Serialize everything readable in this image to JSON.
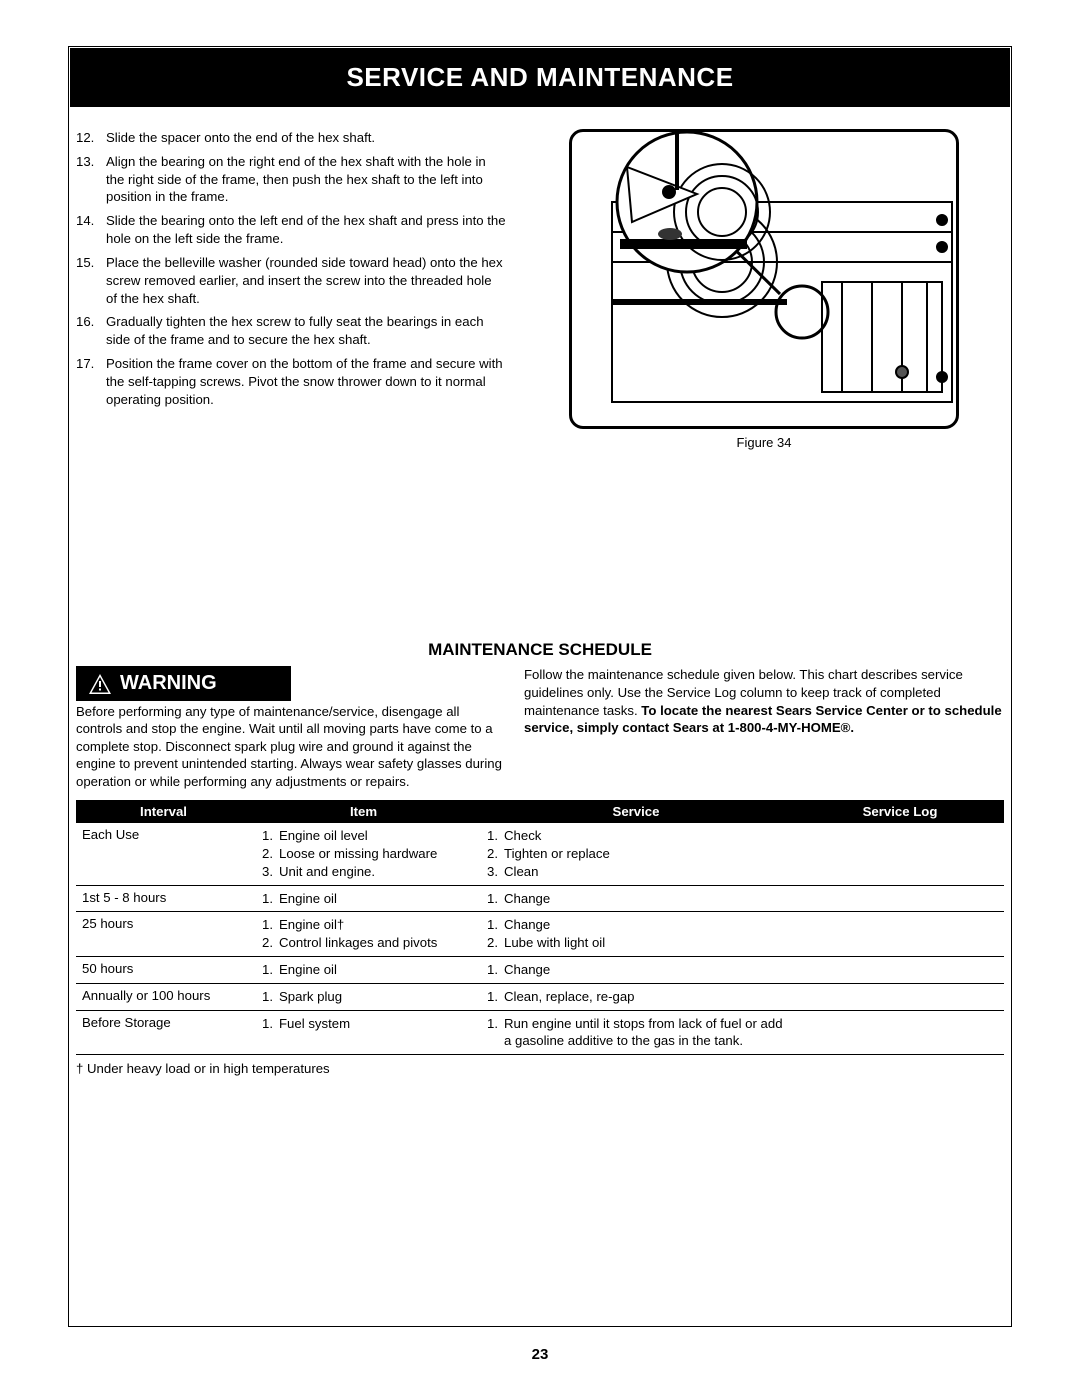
{
  "page": {
    "title": "SERVICE AND MAINTENANCE",
    "number": "23"
  },
  "steps": [
    "Slide the spacer onto the end of the hex shaft.",
    "Align the bearing on the right end of the hex shaft with the hole in the right side of the frame, then push the hex shaft to the left into position in the frame.",
    "Slide the bearing onto the left end of the hex shaft and press into the hole on the left side the frame.",
    "Place the belleville washer (rounded side toward head) onto the hex screw removed earlier, and insert the screw into the threaded hole of the hex shaft.",
    "Gradually tighten the hex screw to fully seat the bearings in each side of the frame and to secure the hex shaft.",
    "Position the frame cover on the bottom of the frame and secure with the self-tapping screws. Pivot the snow thrower down to it normal operating position."
  ],
  "figure": {
    "caption": "Figure 34"
  },
  "schedule": {
    "heading": "MAINTENANCE SCHEDULE",
    "warning_label": "WARNING",
    "warning_text": "Before performing any type of maintenance/service, disengage all controls and stop the engine. Wait until all moving parts have come to a complete stop. Disconnect spark plug wire and ground it against the engine to prevent unintended starting. Always wear safety glasses during operation or while performing any adjustments or repairs.",
    "intro_text": "Follow the maintenance schedule given below. This chart describes service guidelines only. Use the Service Log column to keep track of completed maintenance tasks. ",
    "intro_bold": "To locate the nearest Sears Service Center or to schedule service, simply contact Sears at 1-800-4-MY-HOME®.",
    "columns": [
      "Interval",
      "Item",
      "Service",
      "Service Log"
    ],
    "rows": [
      {
        "interval": "Each Use",
        "items": [
          "Engine oil level",
          "Loose or missing hardware",
          "Unit and engine."
        ],
        "services": [
          "Check",
          "Tighten or replace",
          "Clean"
        ]
      },
      {
        "interval": "1st 5 - 8 hours",
        "items": [
          "Engine oil"
        ],
        "services": [
          "Change"
        ]
      },
      {
        "interval": "25 hours",
        "items": [
          "Engine oil†",
          "Control linkages and pivots"
        ],
        "services": [
          "Change",
          "Lube with light oil"
        ]
      },
      {
        "interval": "50 hours",
        "items": [
          "Engine oil"
        ],
        "services": [
          "Change"
        ]
      },
      {
        "interval": "Annually or 100 hours",
        "items": [
          "Spark plug"
        ],
        "services": [
          "Clean, replace, re-gap"
        ]
      },
      {
        "interval": "Before Storage",
        "items": [
          "Fuel system"
        ],
        "services": [
          "Run engine until it stops from lack of fuel or add a gasoline additive to the gas in the tank."
        ]
      }
    ],
    "footnote": "† Under heavy load or in high temperatures"
  },
  "colors": {
    "banner_bg": "#000000",
    "banner_fg": "#ffffff",
    "text": "#000000",
    "page_bg": "#ffffff",
    "border": "#000000"
  }
}
